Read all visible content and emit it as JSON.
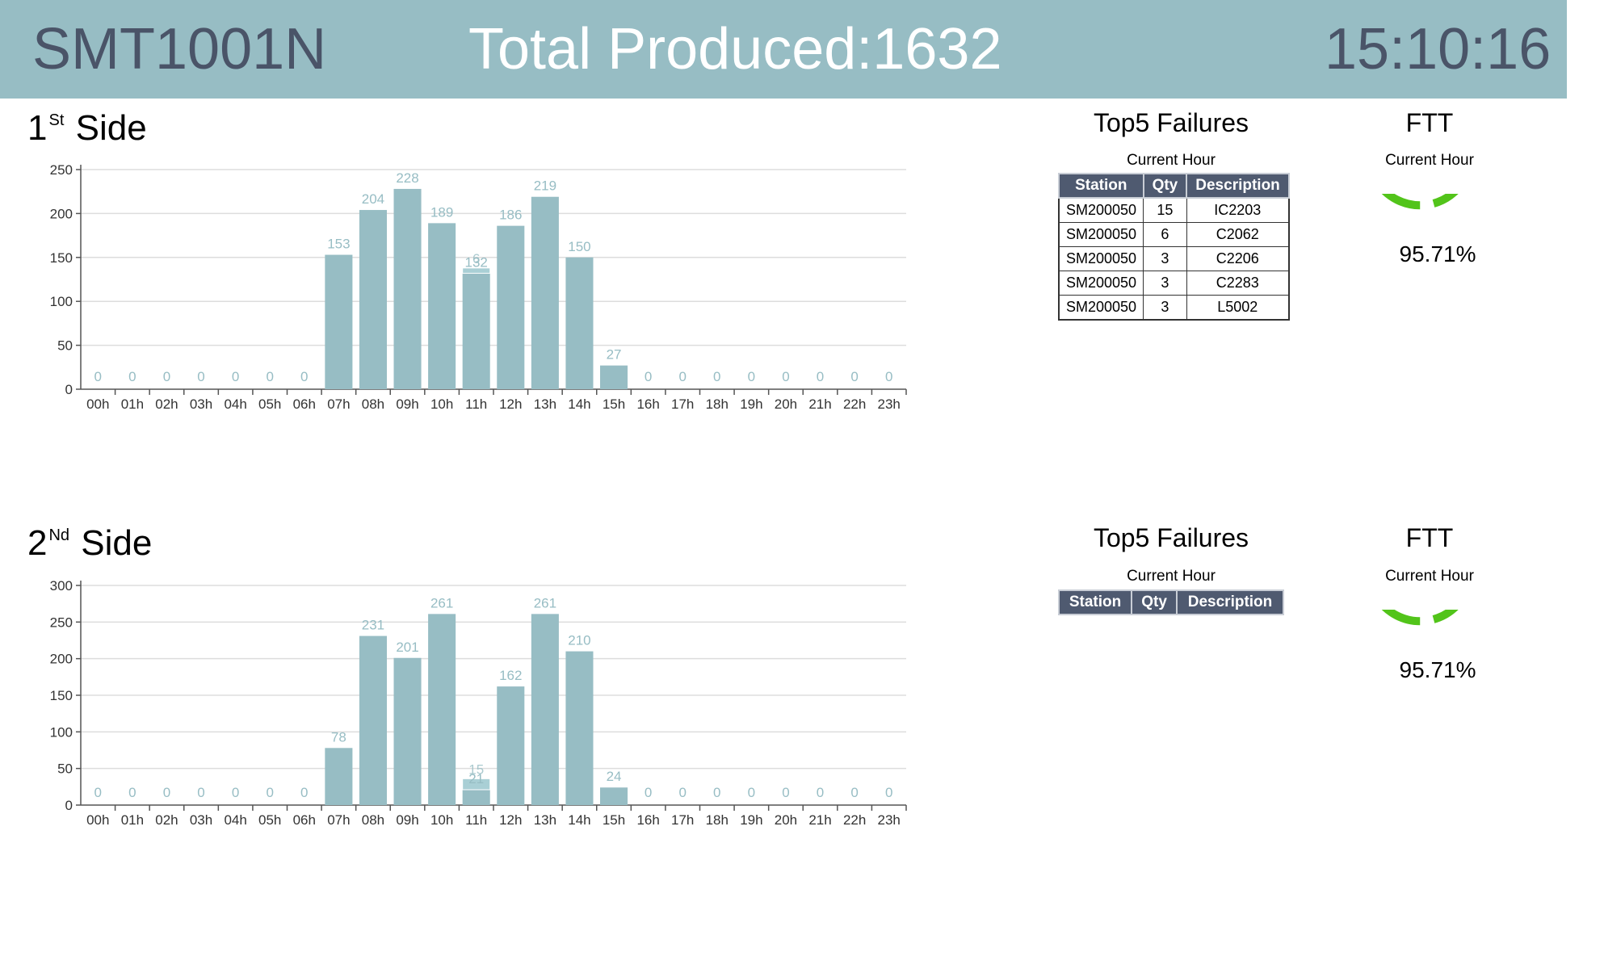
{
  "header": {
    "line_name": "SMT1001N",
    "total_produced": "Total Produced:1632",
    "clock": "15:10:16"
  },
  "colors": {
    "header_bg": "#97bdc4",
    "bar": "#97bdc4",
    "gauge": "#52c41a",
    "table_header": "#4f5a70"
  },
  "sides": [
    {
      "title_num": "1",
      "title_sup": "St",
      "title_word": "Side",
      "failures": {
        "title": "Top5 Failures",
        "subtitle": "Current Hour",
        "columns": [
          "Station",
          "Qty",
          "Description"
        ],
        "rows": [
          [
            "SM200050",
            "15",
            "IC2203"
          ],
          [
            "SM200050",
            "6",
            "C2062"
          ],
          [
            "SM200050",
            "3",
            "C2206"
          ],
          [
            "SM200050",
            "3",
            "C2283"
          ],
          [
            "SM200050",
            "3",
            "L5002"
          ]
        ]
      },
      "ftt": {
        "title": "FTT",
        "subtitle": "Current Hour",
        "value_label": "95.71%",
        "value": 95.71
      }
    },
    {
      "title_num": "2",
      "title_sup": "Nd",
      "title_word": "Side",
      "failures": {
        "title": "Top5 Failures",
        "subtitle": "Current Hour",
        "columns": [
          "Station",
          "Qty",
          "Description"
        ],
        "rows": []
      },
      "ftt": {
        "title": "FTT",
        "subtitle": "Current Hour",
        "value_label": "95.71%",
        "value": 95.71
      }
    }
  ],
  "chart_data": [
    {
      "type": "bar",
      "categories": [
        "00h",
        "01h",
        "02h",
        "03h",
        "04h",
        "05h",
        "06h",
        "07h",
        "08h",
        "09h",
        "10h",
        "11h",
        "12h",
        "13h",
        "14h",
        "15h",
        "16h",
        "17h",
        "18h",
        "19h",
        "20h",
        "21h",
        "22h",
        "23h"
      ],
      "series": [
        {
          "values": [
            0,
            0,
            0,
            0,
            0,
            0,
            0,
            153,
            204,
            228,
            189,
            132,
            186,
            219,
            150,
            27,
            0,
            0,
            0,
            0,
            0,
            0,
            0,
            0
          ]
        },
        {
          "values": [
            0,
            0,
            0,
            0,
            0,
            0,
            0,
            0,
            0,
            0,
            0,
            6,
            0,
            0,
            0,
            0,
            0,
            0,
            0,
            0,
            0,
            0,
            0,
            0
          ]
        }
      ],
      "stacked": true,
      "ylim": [
        0,
        250
      ],
      "yticks": [
        0,
        50,
        100,
        150,
        200,
        250
      ],
      "grid": true
    },
    {
      "type": "bar",
      "categories": [
        "00h",
        "01h",
        "02h",
        "03h",
        "04h",
        "05h",
        "06h",
        "07h",
        "08h",
        "09h",
        "10h",
        "11h",
        "12h",
        "13h",
        "14h",
        "15h",
        "16h",
        "17h",
        "18h",
        "19h",
        "20h",
        "21h",
        "22h",
        "23h"
      ],
      "series": [
        {
          "values": [
            0,
            0,
            0,
            0,
            0,
            0,
            0,
            78,
            231,
            201,
            261,
            21,
            162,
            261,
            210,
            24,
            0,
            0,
            0,
            0,
            0,
            0,
            0,
            0
          ]
        },
        {
          "values": [
            0,
            0,
            0,
            0,
            0,
            0,
            0,
            0,
            0,
            0,
            0,
            15,
            0,
            0,
            0,
            0,
            0,
            0,
            0,
            0,
            0,
            0,
            0,
            0
          ]
        }
      ],
      "stacked": true,
      "ylim": [
        0,
        300
      ],
      "yticks": [
        0,
        50,
        100,
        150,
        200,
        250,
        300
      ],
      "grid": true
    }
  ]
}
